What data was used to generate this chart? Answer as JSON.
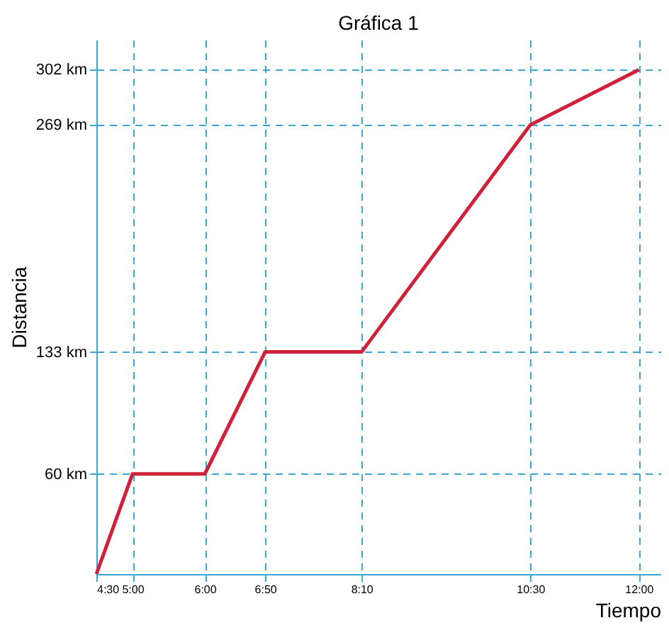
{
  "chart_data": {
    "type": "line",
    "title": "Gráfica 1",
    "xlabel": "Tiempo",
    "ylabel": "Distancia",
    "x": [
      4.5,
      5.0,
      6.0,
      6.8333,
      8.1667,
      10.5,
      12.0
    ],
    "series": [
      {
        "color": "#d0213a",
        "values": [
          0,
          60,
          60,
          133,
          133,
          269,
          302
        ]
      }
    ],
    "xlim": [
      4.5,
      12.3
    ],
    "ylim": [
      0,
      320
    ],
    "xticks": [
      {
        "value": 4.5,
        "label": "4:30"
      },
      {
        "value": 5.0,
        "label": "5:00"
      },
      {
        "value": 6.0,
        "label": "6:00"
      },
      {
        "value": 6.8333,
        "label": "6:50"
      },
      {
        "value": 8.1667,
        "label": "8:10"
      },
      {
        "value": 10.5,
        "label": "10:30"
      },
      {
        "value": 12.0,
        "label": "12:00"
      }
    ],
    "yticks": [
      {
        "value": 60,
        "label": "60 km"
      },
      {
        "value": 133,
        "label": "133 km"
      },
      {
        "value": 269,
        "label": "269 km"
      },
      {
        "value": 302,
        "label": "302 km"
      }
    ],
    "grid": true,
    "marker": "none",
    "line_style": "solid"
  }
}
